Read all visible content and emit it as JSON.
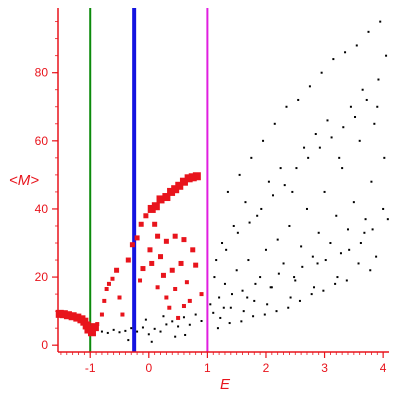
{
  "chart_data": {
    "type": "scatter",
    "xlabel": "E",
    "ylabel": "<M>",
    "xlim": [
      -1.55,
      4.1
    ],
    "ylim": [
      -2,
      99
    ],
    "xticks": [
      -1,
      0,
      1,
      2,
      3,
      4
    ],
    "yticks": [
      0,
      20,
      40,
      60,
      80
    ],
    "xtick_labels": [
      "-1",
      "0",
      "1",
      "2",
      "3",
      "4"
    ],
    "ytick_labels": [
      "0",
      "20",
      "40",
      "60",
      "80"
    ],
    "grid": false,
    "colors": {
      "axes": "#e8141c",
      "marked_points": "#e8141c",
      "points": "#000000",
      "line_green": "#0b8a0b",
      "line_blue": "#1414e0",
      "line_magenta": "#e01ee0"
    },
    "vertical_lines": [
      {
        "x": -1.0,
        "color": "#0b8a0b",
        "width": "thin"
      },
      {
        "x": -0.25,
        "color": "#1414e0",
        "width": "thick"
      },
      {
        "x": 1.0,
        "color": "#e01ee0",
        "width": "thin"
      }
    ],
    "series": [
      {
        "marker": "large red squares",
        "points": [
          [
            -1.52,
            9.2
          ],
          [
            -1.45,
            9.1
          ],
          [
            -1.38,
            8.8
          ],
          [
            -1.3,
            8.5
          ],
          [
            -1.22,
            8.1
          ],
          [
            -1.15,
            7.6
          ],
          [
            -1.1,
            6.9
          ],
          [
            -1.06,
            5.8
          ],
          [
            -1.03,
            4.6
          ],
          [
            -0.97,
            3.8
          ],
          [
            -0.92,
            5.3
          ],
          [
            -0.88,
            6.2
          ],
          [
            -0.8,
            9.0
          ],
          [
            -0.76,
            13.0
          ],
          [
            -0.72,
            16.5
          ],
          [
            -0.68,
            18.0
          ],
          [
            -0.62,
            19.5
          ],
          [
            -0.55,
            22.0
          ],
          [
            -0.5,
            14.0
          ],
          [
            -0.45,
            9.0
          ],
          [
            -0.35,
            25.0
          ],
          [
            -0.28,
            29.5
          ],
          [
            -0.2,
            31.5
          ],
          [
            -0.13,
            35.5
          ],
          [
            -0.05,
            38.0
          ],
          [
            0.05,
            40.0
          ],
          [
            0.12,
            40.8
          ],
          [
            0.2,
            42.8
          ],
          [
            0.3,
            43.5
          ],
          [
            0.38,
            45.0
          ],
          [
            0.45,
            45.8
          ],
          [
            0.52,
            46.8
          ],
          [
            0.6,
            48.0
          ],
          [
            0.68,
            49.0
          ],
          [
            0.75,
            49.3
          ],
          [
            0.82,
            49.6
          ],
          [
            0.1,
            35.5
          ],
          [
            0.15,
            32.0
          ],
          [
            0.3,
            30.5
          ],
          [
            0.45,
            32.0
          ],
          [
            0.6,
            31.0
          ],
          [
            0.75,
            28.0
          ],
          [
            0.8,
            23.5
          ],
          [
            0.2,
            26.0
          ],
          [
            0.05,
            24.0
          ],
          [
            0.25,
            20.5
          ],
          [
            0.4,
            22.0
          ],
          [
            0.55,
            24.0
          ],
          [
            0.65,
            18.5
          ],
          [
            0.15,
            17.0
          ],
          [
            0.3,
            14.0
          ],
          [
            0.45,
            16.5
          ],
          [
            0.6,
            11.5
          ],
          [
            0.7,
            13.0
          ],
          [
            0.5,
            8.0
          ],
          [
            0.9,
            15.0
          ],
          [
            0.02,
            28.0
          ],
          [
            -0.15,
            19.0
          ],
          [
            0.35,
            11.0
          ],
          [
            -0.1,
            22.5
          ]
        ]
      },
      {
        "marker": "small black dots",
        "points": [
          [
            -0.8,
            4.0
          ],
          [
            -0.7,
            3.6
          ],
          [
            -0.6,
            4.5
          ],
          [
            -0.5,
            3.8
          ],
          [
            -0.4,
            4.2
          ],
          [
            -0.3,
            5.0
          ],
          [
            -0.2,
            4.0
          ],
          [
            -0.1,
            5.2
          ],
          [
            0.0,
            3.2
          ],
          [
            0.1,
            4.8
          ],
          [
            0.2,
            4.0
          ],
          [
            0.3,
            6.1
          ],
          [
            0.4,
            7.0
          ],
          [
            0.5,
            5.5
          ],
          [
            0.6,
            8.2
          ],
          [
            0.7,
            6.0
          ],
          [
            0.8,
            9.0
          ],
          [
            0.9,
            7.1
          ],
          [
            -0.35,
            1.5
          ],
          [
            0.05,
            1.0
          ],
          [
            0.45,
            2.5
          ],
          [
            0.62,
            3.0
          ],
          [
            -0.05,
            7.5
          ],
          [
            0.25,
            8.5
          ],
          [
            1.1,
            9.5
          ],
          [
            1.2,
            14.0
          ],
          [
            1.3,
            18.0
          ],
          [
            1.4,
            11.0
          ],
          [
            1.5,
            22.0
          ],
          [
            1.6,
            16.0
          ],
          [
            1.7,
            25.0
          ],
          [
            1.8,
            13.0
          ],
          [
            1.9,
            20.0
          ],
          [
            2.0,
            28.0
          ],
          [
            2.1,
            17.0
          ],
          [
            2.2,
            31.0
          ],
          [
            2.3,
            24.0
          ],
          [
            2.4,
            35.0
          ],
          [
            2.5,
            19.0
          ],
          [
            2.6,
            29.0
          ],
          [
            2.7,
            40.0
          ],
          [
            2.8,
            26.0
          ],
          [
            2.9,
            33.0
          ],
          [
            3.0,
            45.0
          ],
          [
            3.1,
            30.0
          ],
          [
            3.2,
            38.0
          ],
          [
            3.3,
            52.0
          ],
          [
            3.4,
            34.0
          ],
          [
            3.5,
            42.0
          ],
          [
            3.6,
            60.0
          ],
          [
            3.7,
            37.0
          ],
          [
            3.8,
            48.0
          ],
          [
            3.9,
            70.0
          ],
          [
            4.0,
            40.0
          ],
          [
            1.15,
            25.0
          ],
          [
            1.25,
            30.0
          ],
          [
            1.35,
            45.0
          ],
          [
            1.45,
            35.0
          ],
          [
            1.55,
            50.0
          ],
          [
            1.65,
            42.0
          ],
          [
            1.75,
            55.0
          ],
          [
            1.85,
            38.0
          ],
          [
            1.95,
            60.0
          ],
          [
            2.05,
            48.0
          ],
          [
            2.15,
            65.0
          ],
          [
            2.25,
            52.0
          ],
          [
            2.35,
            70.0
          ],
          [
            2.45,
            45.0
          ],
          [
            2.55,
            72.0
          ],
          [
            2.65,
            58.0
          ],
          [
            2.75,
            76.0
          ],
          [
            2.85,
            62.0
          ],
          [
            2.95,
            80.0
          ],
          [
            3.05,
            66.0
          ],
          [
            3.15,
            84.0
          ],
          [
            3.25,
            55.0
          ],
          [
            3.35,
            86.0
          ],
          [
            3.45,
            70.0
          ],
          [
            3.55,
            88.0
          ],
          [
            3.65,
            75.0
          ],
          [
            3.75,
            92.0
          ],
          [
            3.85,
            65.0
          ],
          [
            3.95,
            95.0
          ],
          [
            4.05,
            85.0
          ],
          [
            1.05,
            12.0
          ],
          [
            1.12,
            20.0
          ],
          [
            1.22,
            8.0
          ],
          [
            1.32,
            28.0
          ],
          [
            1.42,
            15.0
          ],
          [
            1.52,
            33.0
          ],
          [
            1.62,
            10.0
          ],
          [
            1.72,
            36.0
          ],
          [
            1.82,
            18.0
          ],
          [
            1.92,
            40.0
          ],
          [
            2.02,
            12.0
          ],
          [
            2.12,
            44.0
          ],
          [
            2.22,
            21.0
          ],
          [
            2.32,
            47.0
          ],
          [
            2.42,
            14.0
          ],
          [
            2.52,
            52.0
          ],
          [
            2.62,
            23.0
          ],
          [
            2.72,
            55.0
          ],
          [
            2.82,
            17.0
          ],
          [
            2.92,
            58.0
          ],
          [
            3.02,
            25.0
          ],
          [
            3.12,
            61.0
          ],
          [
            3.22,
            20.0
          ],
          [
            3.32,
            64.0
          ],
          [
            3.42,
            28.0
          ],
          [
            3.52,
            67.0
          ],
          [
            3.62,
            30.0
          ],
          [
            3.72,
            72.0
          ],
          [
            3.82,
            34.0
          ],
          [
            3.92,
            78.0
          ],
          [
            4.02,
            55.0
          ],
          [
            3.88,
            26.0
          ],
          [
            3.58,
            24.0
          ],
          [
            3.18,
            18.0
          ],
          [
            2.78,
            15.0
          ],
          [
            2.38,
            11.0
          ],
          [
            1.98,
            9.0
          ],
          [
            1.58,
            7.0
          ],
          [
            1.18,
            5.0
          ],
          [
            1.38,
            6.5
          ],
          [
            1.78,
            8.5
          ],
          [
            2.18,
            10.0
          ],
          [
            2.58,
            13.0
          ],
          [
            2.98,
            16.0
          ],
          [
            3.38,
            19.0
          ],
          [
            3.78,
            22.0
          ],
          [
            4.08,
            37.0
          ],
          [
            3.68,
            33.0
          ],
          [
            3.28,
            27.0
          ],
          [
            2.88,
            24.0
          ],
          [
            2.48,
            20.0
          ],
          [
            2.08,
            17.0
          ],
          [
            1.68,
            14.0
          ],
          [
            1.28,
            11.0
          ]
        ]
      }
    ]
  }
}
